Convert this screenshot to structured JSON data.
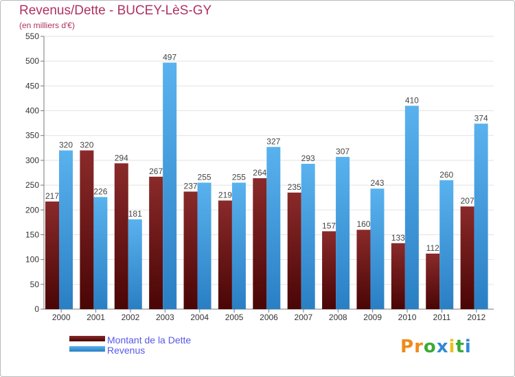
{
  "title": "Revenus/Dette - BUCEY-LèS-GY",
  "subtitle": "(en milliers d'€)",
  "logo": {
    "text": "Proxiti",
    "letters": [
      "P",
      "r",
      "o",
      "x",
      "i",
      "t",
      "i"
    ],
    "colors": [
      "#ef8a1a",
      "#ef8a1a",
      "#3aaa35",
      "#2f8ad6",
      "#e8c21a",
      "#3aaa35",
      "#2f8ad6"
    ]
  },
  "colors": {
    "debt": "#7a1515",
    "revenue": "#3d9be0",
    "title": "#b03060",
    "legend_text": "#5858e8"
  },
  "chart_data": {
    "type": "bar",
    "categories": [
      "2000",
      "2001",
      "2002",
      "2003",
      "2004",
      "2005",
      "2006",
      "2007",
      "2008",
      "2009",
      "2010",
      "2011",
      "2012"
    ],
    "series": [
      {
        "name": "Montant de la Dette",
        "values": [
          217,
          320,
          294,
          267,
          237,
          219,
          264,
          235,
          157,
          160,
          133,
          112,
          207
        ],
        "color": "#7a1515"
      },
      {
        "name": "Revenus",
        "values": [
          320,
          226,
          181,
          497,
          255,
          255,
          327,
          293,
          307,
          243,
          410,
          260,
          374
        ],
        "color": "#3d9be0"
      }
    ],
    "title": "Revenus/Dette - BUCEY-LèS-GY",
    "ylabel": "(en milliers d'€)",
    "ylim": [
      0,
      550
    ],
    "yticks": [
      0,
      50,
      100,
      150,
      200,
      250,
      300,
      350,
      400,
      450,
      500,
      550
    ],
    "grid": true,
    "legend": "bottom-left"
  }
}
